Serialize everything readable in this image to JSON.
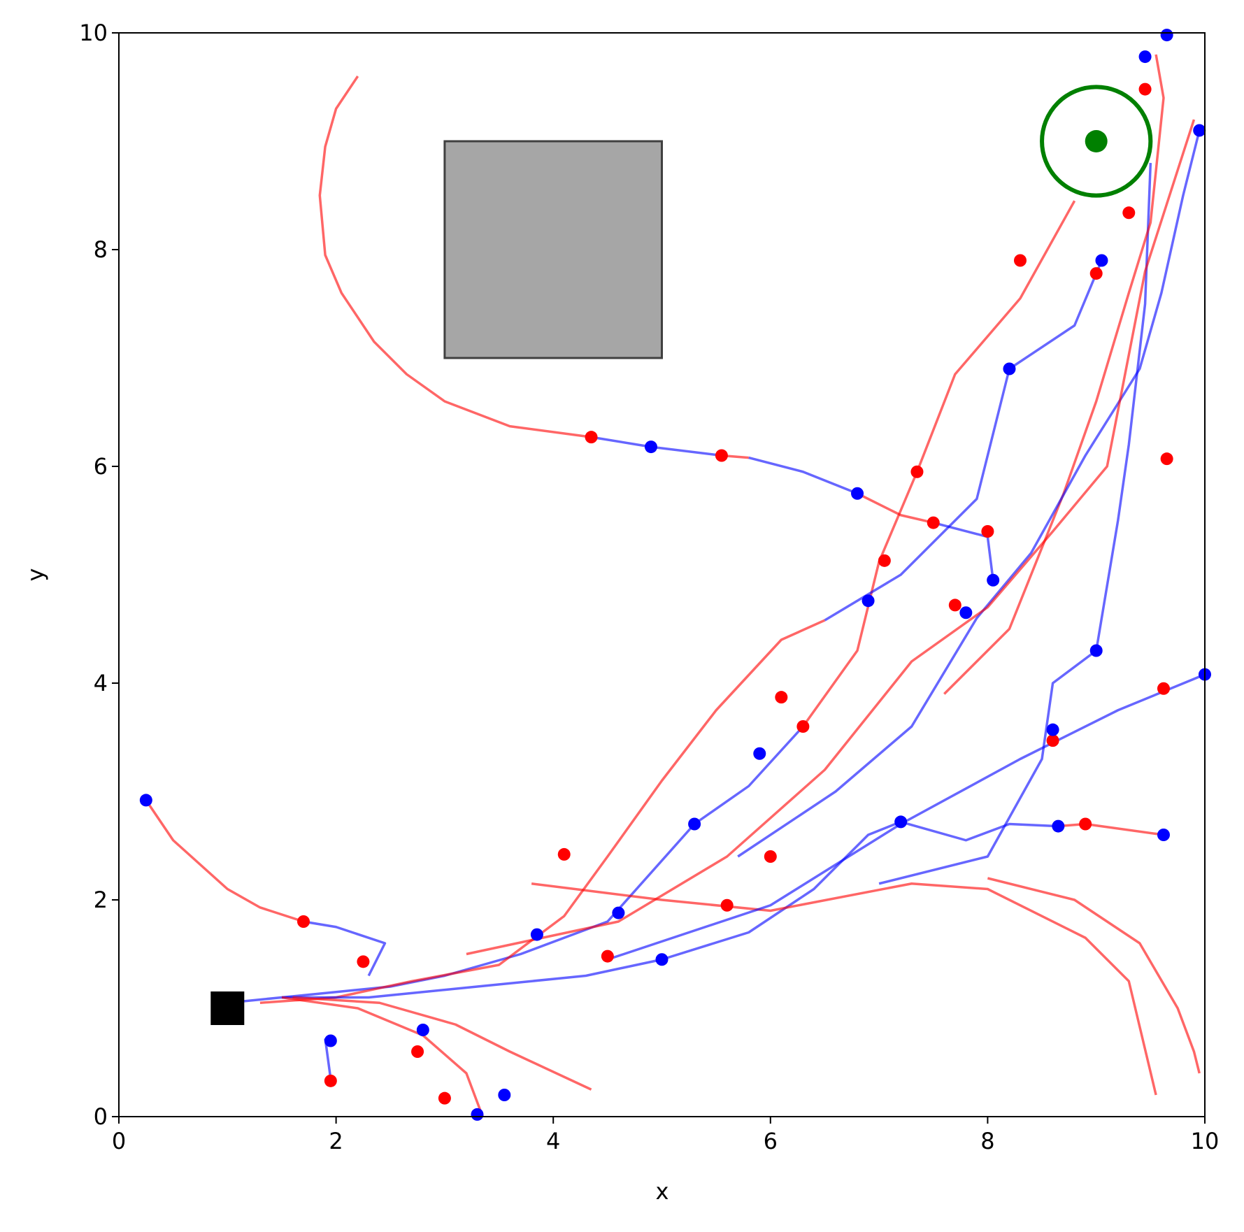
{
  "chart_data": {
    "type": "trajectory",
    "xlabel": "x",
    "ylabel": "y",
    "xlim": [
      0,
      10
    ],
    "ylim": [
      0,
      10
    ],
    "xticks": [
      0,
      2,
      4,
      6,
      8,
      10
    ],
    "yticks": [
      0,
      2,
      4,
      6,
      8,
      10
    ],
    "obstacle": {
      "x": [
        3,
        5
      ],
      "y": [
        7,
        9
      ],
      "color": "#a6a6a6"
    },
    "goal": {
      "x": 9,
      "y": 9,
      "radius": 0.5,
      "color": "#008000"
    },
    "start": {
      "x": 1,
      "y": 1,
      "color": "#000000"
    },
    "lines": [
      {
        "color": "#ff0000",
        "x": [
          2.2,
          2.0,
          1.9,
          1.85,
          1.9,
          2.05,
          2.35,
          2.65,
          3.0,
          3.6,
          4.35
        ],
        "y": [
          9.6,
          9.3,
          8.95,
          8.5,
          7.95,
          7.6,
          7.15,
          6.85,
          6.6,
          6.37,
          6.27
        ]
      },
      {
        "color": "#0000ff",
        "x": [
          4.35,
          4.9,
          5.55
        ],
        "y": [
          6.27,
          6.18,
          6.1
        ]
      },
      {
        "color": "#ff0000",
        "x": [
          5.55,
          5.8
        ],
        "y": [
          6.1,
          6.08
        ]
      },
      {
        "color": "#0000ff",
        "x": [
          5.8,
          6.3,
          6.8
        ],
        "y": [
          6.08,
          5.95,
          5.75
        ]
      },
      {
        "color": "#ff0000",
        "x": [
          6.8,
          7.2,
          7.5
        ],
        "y": [
          5.75,
          5.55,
          5.48
        ]
      },
      {
        "color": "#0000ff",
        "x": [
          7.5,
          8.0,
          8.05
        ],
        "y": [
          5.48,
          5.35,
          4.95
        ]
      },
      {
        "color": "#ff0000",
        "x": [
          0.25,
          0.5,
          1.0,
          1.3,
          1.7
        ],
        "y": [
          2.92,
          2.55,
          2.1,
          1.93,
          1.8
        ]
      },
      {
        "color": "#0000ff",
        "x": [
          1.7,
          2.0,
          2.45,
          2.3
        ],
        "y": [
          1.8,
          1.75,
          1.6,
          1.3
        ]
      },
      {
        "color": "#0000ff",
        "x": [
          1.0,
          1.5,
          2.0,
          2.5,
          3.0,
          3.7,
          4.5,
          5.3,
          5.8,
          6.3
        ],
        "y": [
          1.05,
          1.1,
          1.15,
          1.2,
          1.3,
          1.5,
          1.8,
          2.7,
          3.05,
          3.6
        ]
      },
      {
        "color": "#ff0000",
        "x": [
          6.3,
          6.8,
          7.0,
          7.35,
          7.7,
          8.3,
          8.8
        ],
        "y": [
          3.6,
          4.3,
          5.12,
          5.95,
          6.85,
          7.55,
          8.45
        ]
      },
      {
        "color": "#ff0000",
        "x": [
          1.3,
          2.0,
          2.7,
          3.5,
          4.1,
          4.5,
          5.0,
          5.5,
          6.1,
          6.5
        ],
        "y": [
          1.05,
          1.1,
          1.25,
          1.4,
          1.85,
          2.4,
          3.1,
          3.75,
          4.4,
          4.58
        ]
      },
      {
        "color": "#0000ff",
        "x": [
          6.5,
          7.2,
          7.9,
          8.2,
          8.8,
          9.05
        ],
        "y": [
          4.58,
          5.0,
          5.7,
          6.9,
          7.3,
          7.9
        ]
      },
      {
        "color": "#0000ff",
        "x": [
          1.5,
          2.3,
          3.3,
          4.3,
          5.0,
          5.8,
          6.4,
          6.9,
          7.2,
          7.8,
          8.2,
          8.65
        ],
        "y": [
          1.1,
          1.1,
          1.2,
          1.3,
          1.45,
          1.7,
          2.1,
          2.6,
          2.72,
          2.55,
          2.7,
          2.68
        ]
      },
      {
        "color": "#ff0000",
        "x": [
          8.65,
          8.9,
          9.62
        ],
        "y": [
          2.68,
          2.7,
          2.6
        ]
      },
      {
        "color": "#ff0000",
        "x": [
          3.8,
          5.0,
          6.0,
          7.3,
          8.0,
          8.9,
          9.3,
          9.55
        ],
        "y": [
          2.15,
          2.0,
          1.9,
          2.15,
          2.1,
          1.65,
          1.25,
          0.2
        ]
      },
      {
        "color": "#ff0000",
        "x": [
          1.5,
          2.2,
          2.8,
          3.2,
          3.35
        ],
        "y": [
          1.1,
          1.0,
          0.75,
          0.4,
          0.0
        ]
      },
      {
        "color": "#ff0000",
        "x": [
          1.6,
          2.4,
          3.1,
          3.6,
          4.35
        ],
        "y": [
          1.1,
          1.05,
          0.85,
          0.6,
          0.25
        ]
      },
      {
        "color": "#0000ff",
        "x": [
          1.9,
          1.95
        ],
        "y": [
          0.72,
          0.35
        ]
      },
      {
        "color": "#0000ff",
        "x": [
          7.0,
          8.0,
          8.5,
          8.6,
          9.0,
          9.2,
          9.3,
          9.45,
          9.5
        ],
        "y": [
          2.15,
          2.4,
          3.3,
          4.0,
          4.3,
          5.5,
          6.2,
          7.5,
          8.8
        ]
      },
      {
        "color": "#ff0000",
        "x": [
          7.6,
          8.2,
          8.7,
          9.0,
          9.3,
          9.5,
          9.62,
          9.55
        ],
        "y": [
          3.9,
          4.5,
          5.75,
          6.6,
          7.6,
          8.25,
          9.4,
          9.8
        ]
      },
      {
        "color": "#0000ff",
        "x": [
          4.5,
          6.0,
          7.2,
          8.3,
          9.2,
          10.0
        ],
        "y": [
          1.45,
          1.95,
          2.7,
          3.3,
          3.75,
          4.08
        ]
      },
      {
        "color": "#ff0000",
        "x": [
          8.0,
          8.8,
          9.4,
          9.75,
          9.9,
          9.95
        ],
        "y": [
          2.2,
          2.0,
          1.6,
          1.0,
          0.6,
          0.4
        ]
      },
      {
        "color": "#0000ff",
        "x": [
          5.7,
          6.6,
          7.3,
          7.9,
          8.4,
          8.9,
          9.4,
          9.6,
          9.8,
          9.95
        ],
        "y": [
          2.4,
          3.0,
          3.6,
          4.6,
          5.2,
          6.1,
          6.9,
          7.6,
          8.5,
          9.1
        ]
      },
      {
        "color": "#ff0000",
        "x": [
          3.2,
          4.6,
          5.6,
          6.5,
          7.3,
          8.0,
          8.6,
          9.1,
          9.45,
          9.9
        ],
        "y": [
          1.5,
          1.8,
          2.4,
          3.2,
          4.2,
          4.7,
          5.4,
          6.0,
          7.8,
          9.2
        ]
      }
    ],
    "points": [
      {
        "color": "#ff0000",
        "x": [
          4.35,
          5.55,
          7.5,
          1.7,
          6.3,
          7.35,
          8.3,
          4.1,
          6.1,
          1.95,
          3.0,
          2.75,
          8.9,
          9.62,
          9.65,
          9.3,
          9.0,
          7.7,
          9.45,
          6.0,
          5.6,
          8.6,
          2.25,
          4.5,
          7.05,
          8.0
        ],
        "y": [
          6.27,
          6.1,
          5.48,
          1.8,
          3.6,
          5.95,
          7.9,
          2.42,
          3.87,
          0.33,
          0.17,
          0.6,
          2.7,
          3.95,
          6.07,
          8.34,
          7.78,
          4.72,
          9.48,
          2.4,
          1.95,
          3.47,
          1.43,
          1.48,
          5.13,
          5.4
        ]
      },
      {
        "color": "#0000ff",
        "x": [
          4.9,
          6.8,
          8.05,
          0.25,
          5.3,
          6.9,
          8.2,
          9.05,
          7.2,
          8.65,
          1.95,
          3.3,
          3.55,
          2.8,
          9.0,
          8.6,
          10.0,
          9.62,
          9.95,
          5.9,
          4.6,
          7.8,
          9.45,
          9.65,
          3.85,
          5.0
        ],
        "y": [
          6.18,
          5.75,
          4.95,
          2.92,
          2.7,
          4.76,
          6.9,
          7.9,
          2.72,
          2.68,
          0.7,
          0.02,
          0.2,
          0.8,
          4.3,
          3.57,
          4.08,
          2.6,
          9.1,
          3.35,
          1.88,
          4.65,
          9.78,
          9.98,
          1.68,
          1.45
        ]
      }
    ]
  }
}
